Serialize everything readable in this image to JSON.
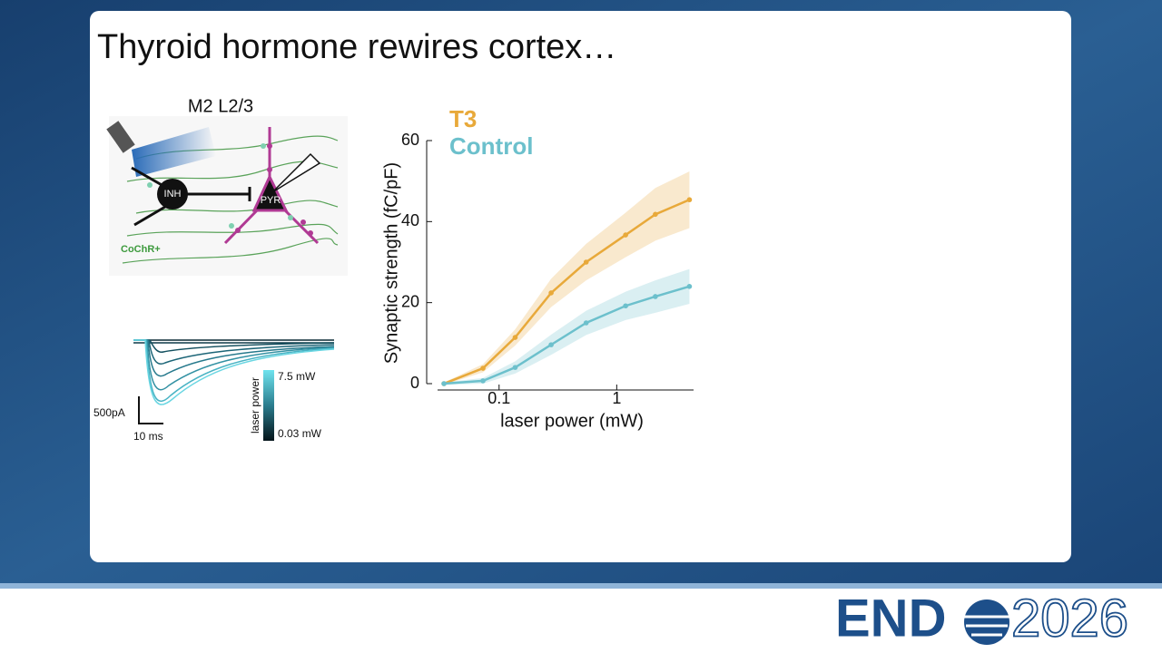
{
  "slide": {
    "title": "Thyroid hormone rewires cortex…",
    "diagram": {
      "region": "M2 L2/3",
      "inh": "INH",
      "pyr": "PYR",
      "opsin": "CoChR+"
    },
    "traces": {
      "scale_current": "500pA",
      "scale_time": "10 ms",
      "colorbar_label": "laser power",
      "colorbar_max": "7.5  mW",
      "colorbar_min": "0.03 mW"
    },
    "logo": {
      "left": "END",
      "right": "2026"
    }
  },
  "chart_data": {
    "type": "line",
    "xlabel": "laser power (mW)",
    "ylabel": "Synaptic strength (fC/pF)",
    "x": [
      0.034,
      0.073,
      0.137,
      0.277,
      0.55,
      1.19,
      2.13,
      4.15
    ],
    "log_x": true,
    "xlim": [
      0.03,
      4.5
    ],
    "xticks": [
      0.1,
      1
    ],
    "ylim": [
      0,
      60
    ],
    "yticks": [
      0,
      20,
      40,
      60
    ],
    "legend": "top-left",
    "series": [
      {
        "name": "T3",
        "color": "#e8a93a",
        "values": [
          0,
          3.8,
          11.4,
          22.4,
          30,
          36.7,
          41.8,
          45.4
        ],
        "errors": [
          0.3,
          1,
          2,
          3.5,
          4.5,
          5.5,
          6.5,
          7
        ]
      },
      {
        "name": "Control",
        "color": "#6cc0cc",
        "values": [
          0,
          0.7,
          4,
          9.6,
          15,
          19.2,
          21.5,
          24
        ],
        "errors": [
          0.3,
          0.7,
          1.5,
          2.5,
          3,
          3.5,
          4,
          4.3
        ]
      }
    ]
  }
}
